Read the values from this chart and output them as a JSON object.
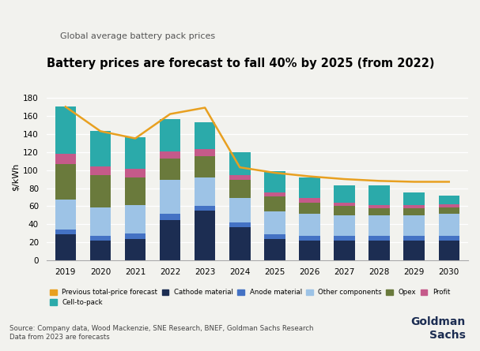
{
  "years": [
    2019,
    2020,
    2021,
    2022,
    2023,
    2024,
    2025,
    2026,
    2027,
    2028,
    2029,
    2030
  ],
  "cathode_material": [
    29,
    22,
    24,
    45,
    55,
    37,
    24,
    22,
    22,
    22,
    22,
    22
  ],
  "anode_material": [
    5,
    5,
    6,
    7,
    5,
    5,
    5,
    5,
    5,
    5,
    5,
    5
  ],
  "other_components": [
    33,
    32,
    31,
    37,
    32,
    27,
    25,
    25,
    23,
    23,
    23,
    25
  ],
  "opex": [
    40,
    35,
    31,
    24,
    23,
    20,
    17,
    12,
    10,
    8,
    8,
    7
  ],
  "profit": [
    11,
    10,
    9,
    8,
    8,
    5,
    4,
    5,
    4,
    3,
    3,
    3
  ],
  "cell_to_pack": [
    52,
    39,
    35,
    35,
    30,
    26,
    24,
    23,
    19,
    22,
    14,
    10
  ],
  "prev_forecast": [
    170,
    143,
    135,
    162,
    169,
    103,
    97,
    93,
    90,
    88,
    87,
    87
  ],
  "cathode_color": "#1c2d52",
  "anode_color": "#4472c4",
  "other_color": "#9dc3e6",
  "opex_color": "#6a7a3c",
  "profit_color": "#c55a8a",
  "cell_color": "#2baaaa",
  "forecast_color": "#e8a020",
  "title": "Battery prices are forecast to fall 40% by 2025 (from 2022)",
  "subtitle": "Global average battery pack prices",
  "ylabel": "$/kWh",
  "source": "Source: Company data, Wood Mackenzie, SNE Research, BNEF, Goldman Sachs Research\nData from 2023 are forecasts",
  "ylim": [
    0,
    185
  ],
  "yticks": [
    0,
    20,
    40,
    60,
    80,
    100,
    120,
    140,
    160,
    180
  ],
  "bg_color": "#f2f2ee"
}
